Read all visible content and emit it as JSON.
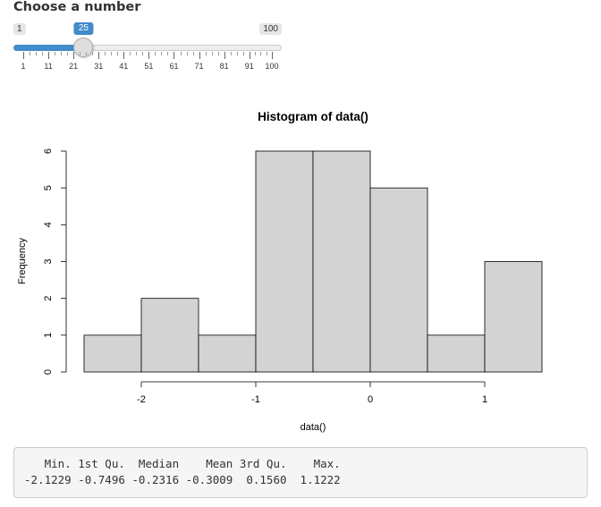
{
  "input": {
    "label": "Choose a number",
    "min": 1,
    "max": 100,
    "value": 25,
    "min_label": "1",
    "max_label": "100",
    "value_label": "25",
    "grid_labels": [
      "1",
      "11",
      "21",
      "31",
      "41",
      "51",
      "61",
      "71",
      "81",
      "91",
      "100"
    ],
    "accent_color": "#428bca"
  },
  "chart_data": {
    "type": "bar",
    "title": "Histogram of data()",
    "xlabel": "data()",
    "ylabel": "Frequency",
    "bins": [
      [
        -2.5,
        -2.0
      ],
      [
        -2.0,
        -1.5
      ],
      [
        -1.5,
        -1.0
      ],
      [
        -1.0,
        -0.5
      ],
      [
        -0.5,
        0.0
      ],
      [
        0.0,
        0.5
      ],
      [
        0.5,
        1.0
      ],
      [
        1.0,
        1.5
      ]
    ],
    "values": [
      1,
      2,
      1,
      6,
      6,
      5,
      1,
      3
    ],
    "xticks": [
      "-2",
      "-1",
      "0",
      "1"
    ],
    "yticks": [
      "0",
      "1",
      "2",
      "3",
      "4",
      "5",
      "6"
    ],
    "xlim": [
      -2.5,
      1.5
    ],
    "ylim": [
      0,
      6
    ],
    "bar_fill": "#d3d3d3"
  },
  "summary": {
    "header": "   Min. 1st Qu.  Median    Mean 3rd Qu.    Max. ",
    "values": "-2.1229 -0.7496 -0.2316 -0.3009  0.1560  1.1222 "
  }
}
